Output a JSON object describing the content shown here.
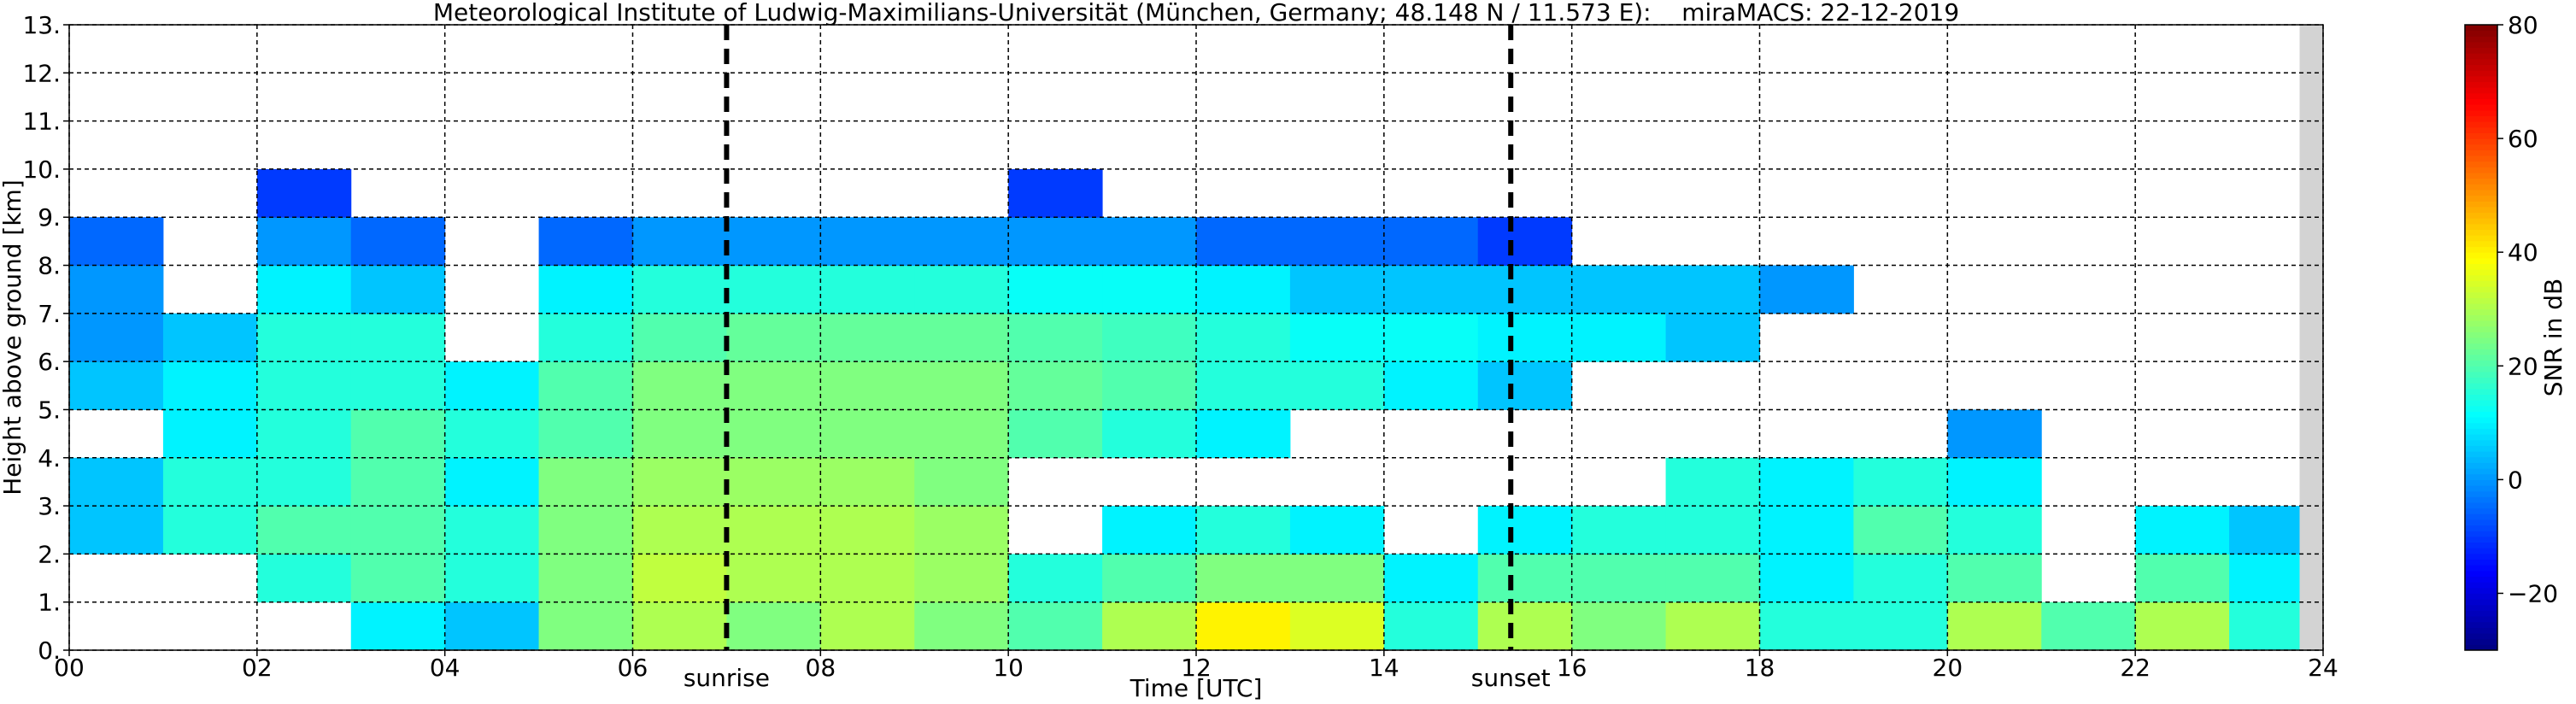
{
  "chart_data": {
    "type": "heatmap",
    "title": "Meteorological Institute of Ludwig-Maximilians-Universität (München, Germany; 48.148 N / 11.573 E):    miraMACS: 22-12-2019",
    "xlabel": "Time [UTC]",
    "ylabel": "Height above ground [km]",
    "xlim": [
      0,
      24
    ],
    "xticks": [
      {
        "value": 0,
        "label": "00"
      },
      {
        "value": 2,
        "label": "02"
      },
      {
        "value": 4,
        "label": "04"
      },
      {
        "value": 6,
        "label": "06"
      },
      {
        "value": 8,
        "label": "08"
      },
      10,
      12,
      14,
      16,
      18,
      20,
      22,
      24
    ],
    "ylim": [
      0,
      13
    ],
    "yticks": [
      {
        "value": 0,
        "label": "0."
      },
      {
        "value": 1,
        "label": "1."
      },
      {
        "value": 2,
        "label": "2."
      },
      {
        "value": 3,
        "label": "3."
      },
      {
        "value": 4,
        "label": "4."
      },
      {
        "value": 5,
        "label": "5."
      },
      {
        "value": 6,
        "label": "6."
      },
      {
        "value": 7,
        "label": "7."
      },
      {
        "value": 8,
        "label": "8."
      },
      {
        "value": 9,
        "label": "9."
      },
      {
        "value": 10,
        "label": "10."
      },
      {
        "value": 11,
        "label": "11."
      },
      {
        "value": 12,
        "label": "12."
      },
      {
        "value": 13,
        "label": "13."
      }
    ],
    "grid": true,
    "colormap": "jet",
    "z": [
      [
        null,
        null,
        null,
        10,
        5,
        25,
        30,
        25,
        30,
        25,
        20,
        30,
        40,
        35,
        15,
        30,
        25,
        30,
        15,
        15,
        30,
        20,
        30,
        15
      ],
      [
        null,
        null,
        15,
        20,
        15,
        25,
        32,
        30,
        30,
        28,
        15,
        20,
        25,
        25,
        10,
        20,
        20,
        20,
        10,
        15,
        20,
        null,
        20,
        10
      ],
      [
        5,
        15,
        20,
        20,
        15,
        25,
        30,
        30,
        30,
        28,
        null,
        10,
        15,
        10,
        null,
        10,
        15,
        15,
        10,
        20,
        15,
        null,
        10,
        5
      ],
      [
        5,
        15,
        15,
        20,
        10,
        25,
        28,
        28,
        28,
        25,
        null,
        null,
        null,
        null,
        null,
        null,
        null,
        15,
        10,
        15,
        10,
        null,
        null,
        null
      ],
      [
        null,
        10,
        15,
        20,
        15,
        20,
        25,
        25,
        25,
        25,
        20,
        15,
        10,
        null,
        null,
        null,
        null,
        null,
        null,
        null,
        0,
        null,
        null,
        null
      ],
      [
        5,
        10,
        15,
        15,
        10,
        20,
        25,
        25,
        25,
        25,
        22,
        20,
        15,
        15,
        10,
        5,
        null,
        null,
        null,
        null,
        null,
        null,
        null,
        null
      ],
      [
        0,
        5,
        15,
        15,
        null,
        15,
        20,
        22,
        22,
        22,
        20,
        18,
        15,
        12,
        12,
        10,
        10,
        5,
        null,
        null,
        null,
        null,
        null,
        null
      ],
      [
        0,
        null,
        10,
        5,
        null,
        10,
        15,
        15,
        15,
        15,
        12,
        12,
        10,
        5,
        5,
        5,
        5,
        5,
        0,
        null,
        null,
        null,
        null,
        null
      ],
      [
        -5,
        null,
        0,
        -5,
        null,
        -5,
        0,
        0,
        0,
        0,
        0,
        0,
        -5,
        -5,
        -5,
        -10,
        null,
        null,
        null,
        null,
        null,
        null,
        null,
        null
      ],
      [
        null,
        null,
        -10,
        null,
        null,
        null,
        null,
        null,
        null,
        null,
        -10,
        null,
        null,
        null,
        null,
        null,
        null,
        null,
        null,
        null,
        null,
        null,
        null,
        null
      ],
      [
        null,
        null,
        null,
        null,
        null,
        null,
        null,
        null,
        null,
        null,
        null,
        null,
        null,
        null,
        null,
        null,
        null,
        null,
        null,
        null,
        null,
        null,
        null,
        null
      ],
      [
        null,
        null,
        null,
        null,
        null,
        null,
        null,
        null,
        null,
        null,
        null,
        null,
        null,
        null,
        null,
        null,
        null,
        null,
        null,
        null,
        null,
        null,
        null,
        null
      ],
      [
        null,
        null,
        null,
        null,
        null,
        null,
        null,
        null,
        null,
        null,
        null,
        null,
        null,
        null,
        null,
        null,
        null,
        null,
        null,
        null,
        null,
        null,
        null,
        null
      ]
    ],
    "colorbar": {
      "label": "SNR in dB",
      "lim": [
        -30,
        80
      ],
      "ticks": [
        {
          "value": -20,
          "label": "−20"
        },
        0,
        20,
        40,
        60,
        80
      ]
    },
    "annotations": [
      {
        "text": "sunrise",
        "x": 7.0
      },
      {
        "text": "sunset",
        "x": 15.35
      }
    ]
  }
}
